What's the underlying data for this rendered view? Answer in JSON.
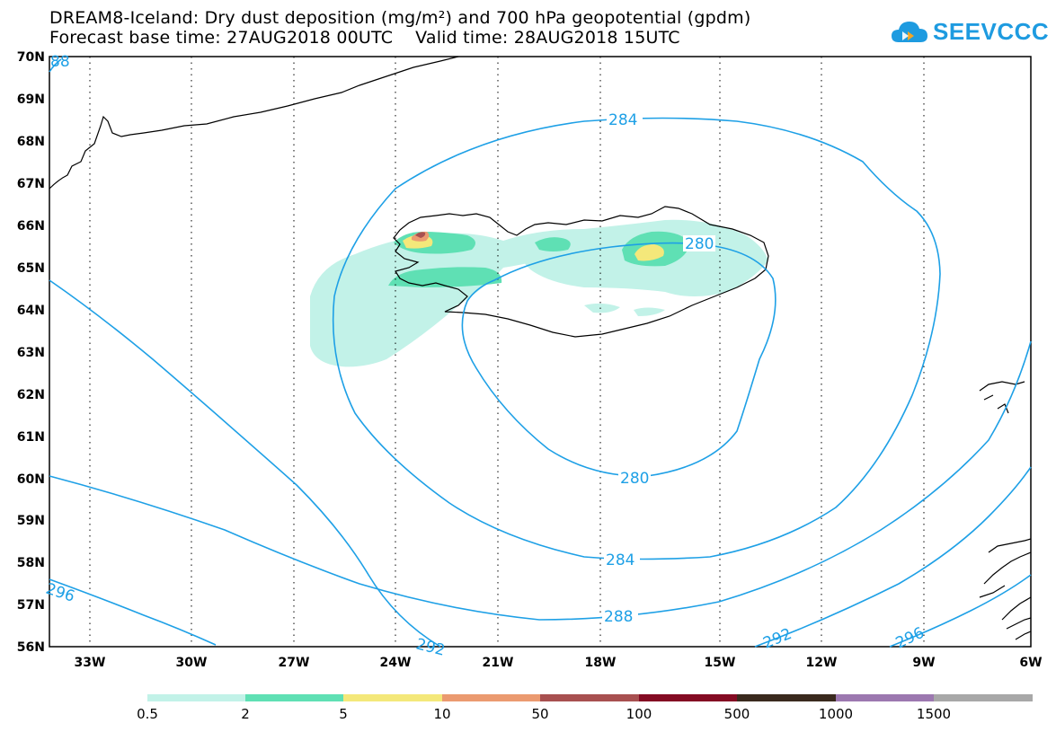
{
  "header": {
    "title_line1": "DREAM8-Iceland: Dry dust deposition (mg/m²) and 700 hPa geopotential (gpdm)",
    "title_line2": "Forecast base time: 27AUG2018 00UTC    Valid time: 28AUG2018 15UTC"
  },
  "logo": {
    "text": "SEEVCCC",
    "color": "#1e9be0",
    "accent": "#f5a623"
  },
  "map": {
    "lat_labels": [
      "70N",
      "69N",
      "68N",
      "67N",
      "66N",
      "65N",
      "64N",
      "63N",
      "62N",
      "61N",
      "60N",
      "59N",
      "58N",
      "57N",
      "56N"
    ],
    "lon_labels": [
      "33W",
      "30W",
      "27W",
      "24W",
      "21W",
      "18W",
      "15W",
      "12W",
      "9W",
      "6W"
    ],
    "contour_labels": [
      {
        "text": "284",
        "id": "c284-top"
      },
      {
        "text": "280",
        "id": "c280-right"
      },
      {
        "text": "280",
        "id": "c280-bottom"
      },
      {
        "text": "284",
        "id": "c284-bottom"
      },
      {
        "text": "288",
        "id": "c288-bottom"
      },
      {
        "text": "292",
        "id": "c292-left"
      },
      {
        "text": "292",
        "id": "c292-right"
      },
      {
        "text": "296",
        "id": "c296-left"
      },
      {
        "text": "296",
        "id": "c296-right"
      },
      {
        "text": "88",
        "id": "c288-topleft"
      }
    ],
    "contour_color": "#1ea0e6",
    "coast_color": "#000000"
  },
  "legend": {
    "colors": [
      "#c2f2e8",
      "#5fe0b4",
      "#f4e87a",
      "#eb9a70",
      "#a85050",
      "#840b23",
      "#3a2a1e",
      "#9c78b0",
      "#a8a8a8"
    ],
    "labels": [
      "0.5",
      "2",
      "5",
      "10",
      "50",
      "100",
      "500",
      "1000",
      "1500"
    ]
  }
}
